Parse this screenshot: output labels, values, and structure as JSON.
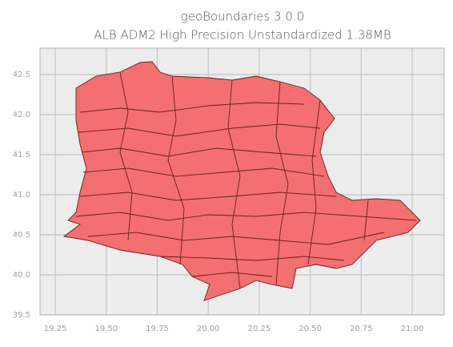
{
  "chart_data": {
    "type": "map",
    "title": "geoBoundaries 3.0.0",
    "subtitle": "ALB ADM2 High Precision Unstandardized 1.38MB",
    "xlim": [
      19.175,
      21.157
    ],
    "ylim": [
      39.5,
      42.83
    ],
    "xticks": [
      19.25,
      {
        "value": 19.5,
        "label": "19.50"
      },
      19.75,
      {
        "value": 20,
        "label": "20.00"
      },
      20.25,
      {
        "value": 20.5,
        "label": "20.50"
      },
      20.75,
      {
        "value": 21,
        "label": "21.00"
      }
    ],
    "yticks": [
      39.5,
      {
        "value": 40,
        "label": "40.0"
      },
      40.5,
      {
        "value": 41,
        "label": "41.0"
      },
      41.5,
      {
        "value": 42,
        "label": "42.0"
      },
      42.5
    ],
    "grid": true,
    "color": "#f46f6f"
  }
}
